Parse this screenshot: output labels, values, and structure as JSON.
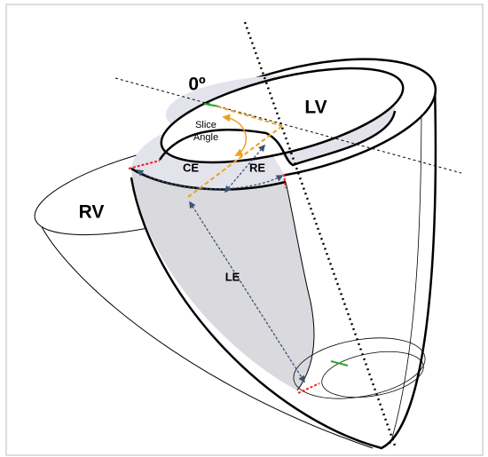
{
  "labels": {
    "zero": "0º",
    "lv": "LV",
    "rv": "RV",
    "slice": "Slice",
    "angle": "Angle",
    "ce": "CE",
    "re": "RE",
    "le": "LE"
  }
}
